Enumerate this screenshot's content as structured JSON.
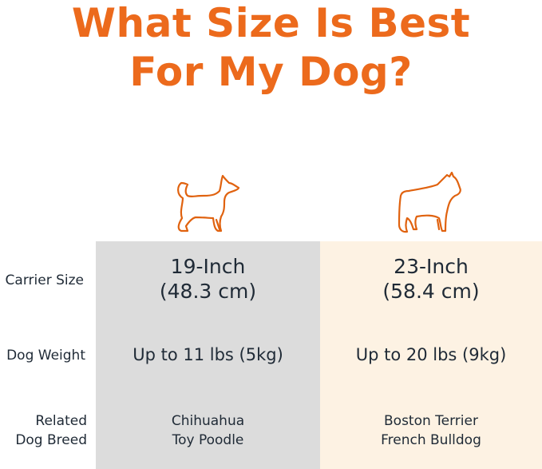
{
  "title": {
    "line1": "What Size Is Best",
    "line2": "For My Dog?"
  },
  "colors": {
    "accent": "#ec6a1c",
    "column_small": "#dcdcdc",
    "column_large": "#fdf2e3"
  },
  "row_labels": {
    "carrier_size": "Carrier Size",
    "dog_weight": "Dog Weight",
    "breed_line1": "Related",
    "breed_line2": "Dog Breed"
  },
  "columns": [
    {
      "icon": "chihuahua-outline-icon",
      "size_line1": "19-Inch",
      "size_line2": "(48.3 cm)",
      "weight": "Up to 11 lbs (5kg)",
      "breed1": "Chihuahua",
      "breed2": "Toy Poodle"
    },
    {
      "icon": "bulldog-outline-icon",
      "size_line1": "23-Inch",
      "size_line2": "(58.4 cm)",
      "weight": "Up to 20 lbs (9kg)",
      "breed1": "Boston Terrier",
      "breed2": "French Bulldog"
    }
  ]
}
